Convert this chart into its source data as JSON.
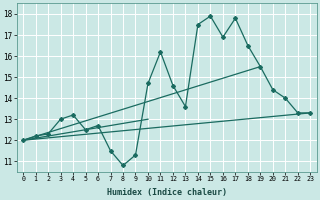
{
  "xlabel": "Humidex (Indice chaleur)",
  "ylabel": "",
  "bg_color": "#cbe8e5",
  "grid_color": "#b0d8d4",
  "line_color": "#1a6b60",
  "xlim": [
    -0.5,
    23.5
  ],
  "ylim": [
    10.5,
    18.5
  ],
  "xticks": [
    0,
    1,
    2,
    3,
    4,
    5,
    6,
    7,
    8,
    9,
    10,
    11,
    12,
    13,
    14,
    15,
    16,
    17,
    18,
    19,
    20,
    21,
    22,
    23
  ],
  "yticks": [
    11,
    12,
    13,
    14,
    15,
    16,
    17,
    18
  ],
  "s1x": [
    0,
    1,
    2,
    3,
    4,
    5,
    6,
    7,
    8,
    9,
    10,
    11,
    12,
    13,
    14,
    15,
    16,
    17,
    18,
    19,
    20,
    21,
    22,
    23
  ],
  "s1y": [
    12.0,
    12.2,
    12.3,
    13.0,
    13.2,
    12.5,
    12.7,
    11.5,
    10.8,
    11.3,
    14.7,
    16.2,
    14.6,
    13.6,
    17.5,
    17.9,
    16.9,
    17.8,
    16.5,
    15.5,
    14.4,
    14.0,
    13.3,
    13.3
  ],
  "trend1_x": [
    0,
    23
  ],
  "trend1_y": [
    12.0,
    13.3
  ],
  "trend2_x": [
    0,
    19
  ],
  "trend2_y": [
    12.0,
    15.5
  ],
  "trend3_x": [
    0,
    10
  ],
  "trend3_y": [
    12.0,
    13.0
  ],
  "marker": "D",
  "markersize": 2.0,
  "linewidth": 0.9
}
